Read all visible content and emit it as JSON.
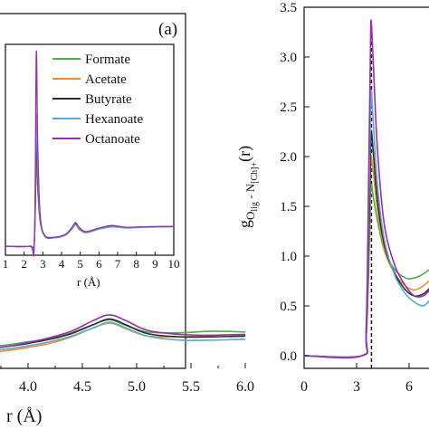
{
  "colors": {
    "Formate": "#4cae4c",
    "Acetate": "#f08c2a",
    "Butyrate": "#2a2a2a",
    "Hexanoate": "#56a9d8",
    "Octanoate": "#9b2db0"
  },
  "chart_data": [
    {
      "type": "line",
      "panel": "left-main",
      "panel_label": "(a)",
      "xlabel": "r (Å)",
      "xlim": [
        3.5,
        6.0
      ],
      "xticks": [
        "4.0",
        "4.5",
        "5.0",
        "5.5",
        "6.0"
      ],
      "series": [
        {
          "name": "Formate",
          "x": [
            3.5,
            3.8,
            4.0,
            4.2,
            4.4,
            4.6,
            4.75,
            4.9,
            5.1,
            5.4,
            5.7,
            6.0
          ],
          "y": [
            0.78,
            0.82,
            0.86,
            0.9,
            0.97,
            1.07,
            1.13,
            1.06,
            0.98,
            0.97,
            0.99,
            0.98
          ]
        },
        {
          "name": "Acetate",
          "x": [
            3.5,
            3.8,
            4.0,
            4.2,
            4.4,
            4.6,
            4.75,
            4.9,
            5.1,
            5.4,
            5.7,
            6.0
          ],
          "y": [
            0.7,
            0.75,
            0.79,
            0.84,
            0.92,
            1.03,
            1.09,
            1.02,
            0.93,
            0.92,
            0.94,
            0.95
          ]
        },
        {
          "name": "Butyrate",
          "x": [
            3.5,
            3.8,
            4.0,
            4.2,
            4.4,
            4.6,
            4.75,
            4.9,
            5.1,
            5.4,
            5.7,
            6.0
          ],
          "y": [
            0.76,
            0.8,
            0.84,
            0.89,
            0.96,
            1.07,
            1.14,
            1.07,
            0.96,
            0.92,
            0.92,
            0.93
          ]
        },
        {
          "name": "Hexanoate",
          "x": [
            3.5,
            3.8,
            4.0,
            4.2,
            4.4,
            4.6,
            4.75,
            4.9,
            5.1,
            5.4,
            5.7,
            6.0
          ],
          "y": [
            0.73,
            0.77,
            0.81,
            0.86,
            0.93,
            1.03,
            1.1,
            1.03,
            0.93,
            0.88,
            0.88,
            0.89
          ]
        },
        {
          "name": "Octanoate",
          "x": [
            3.5,
            3.8,
            4.0,
            4.2,
            4.4,
            4.6,
            4.75,
            4.9,
            5.1,
            5.4,
            5.7,
            6.0
          ],
          "y": [
            0.75,
            0.8,
            0.85,
            0.91,
            0.99,
            1.12,
            1.19,
            1.12,
            1.0,
            0.95,
            0.94,
            0.95
          ]
        }
      ]
    },
    {
      "type": "line",
      "panel": "left-inset",
      "xlabel": "r (Å)",
      "xlim": [
        1,
        10
      ],
      "xticks": [
        "1",
        "2",
        "3",
        "4",
        "5",
        "6",
        "7",
        "8",
        "9",
        "10"
      ],
      "legend": "top-right",
      "series": [
        {
          "name": "Formate",
          "x": [
            1,
            2.3,
            2.55,
            2.65,
            2.72,
            2.85,
            3.1,
            3.6,
            4.2,
            4.55,
            4.75,
            4.95,
            5.3,
            6.0,
            6.7,
            7.5,
            8.5,
            10
          ],
          "y": [
            0,
            0,
            0.3,
            4.35,
            3.0,
            1.3,
            0.55,
            0.45,
            0.58,
            0.9,
            1.12,
            0.88,
            0.7,
            0.88,
            1.03,
            0.95,
            0.98,
            1.0
          ]
        },
        {
          "name": "Acetate",
          "x": [
            1,
            2.3,
            2.55,
            2.65,
            2.72,
            2.85,
            3.1,
            3.6,
            4.2,
            4.55,
            4.75,
            4.95,
            5.3,
            6.0,
            6.7,
            7.5,
            8.5,
            10
          ],
          "y": [
            0,
            0,
            0.3,
            4.7,
            3.1,
            1.3,
            0.5,
            0.42,
            0.55,
            0.86,
            1.08,
            0.85,
            0.68,
            0.86,
            1.0,
            0.93,
            0.97,
            1.0
          ]
        },
        {
          "name": "Butyrate",
          "x": [
            1,
            2.3,
            2.55,
            2.65,
            2.72,
            2.85,
            3.1,
            3.6,
            4.2,
            4.55,
            4.75,
            4.95,
            5.3,
            6.0,
            6.7,
            7.5,
            8.5,
            10
          ],
          "y": [
            0,
            0,
            0.3,
            5.4,
            3.5,
            1.4,
            0.52,
            0.44,
            0.57,
            0.9,
            1.15,
            0.9,
            0.72,
            0.9,
            1.02,
            0.95,
            0.98,
            1.0
          ]
        },
        {
          "name": "Hexanoate",
          "x": [
            1,
            2.3,
            2.55,
            2.65,
            2.72,
            2.85,
            3.1,
            3.6,
            4.2,
            4.55,
            4.75,
            4.95,
            5.3,
            6.0,
            6.7,
            7.5,
            8.5,
            10
          ],
          "y": [
            0,
            0,
            0.3,
            6.6,
            4.1,
            1.5,
            0.5,
            0.42,
            0.55,
            0.86,
            1.1,
            0.86,
            0.68,
            0.86,
            0.98,
            0.92,
            0.96,
            0.99
          ]
        },
        {
          "name": "Octanoate",
          "x": [
            1,
            2.3,
            2.55,
            2.65,
            2.72,
            2.85,
            3.1,
            3.6,
            4.2,
            4.55,
            4.75,
            4.95,
            5.3,
            6.0,
            6.7,
            7.5,
            8.5,
            10
          ],
          "y": [
            0,
            0,
            0.3,
            9.8,
            5.6,
            1.7,
            0.55,
            0.45,
            0.6,
            0.95,
            1.2,
            0.95,
            0.74,
            0.92,
            1.05,
            0.96,
            0.99,
            1.0
          ]
        }
      ]
    },
    {
      "type": "line",
      "panel": "right",
      "xlabel": "",
      "ylabel_main": "g",
      "ylabel_sub": "O",
      "ylabel_subsub": "lig",
      "ylabel_mid": " - N",
      "ylabel_mid_sub": "[Ch]+",
      "ylabel_tail": "(r)",
      "ylim": [
        -0.1,
        3.5
      ],
      "xlim": [
        0,
        7.5
      ],
      "xticks": [
        "0",
        "3",
        "6"
      ],
      "yticks": [
        "0.0",
        "0.5",
        "1.0",
        "1.5",
        "2.0",
        "2.5",
        "3.0",
        "3.5"
      ],
      "vline_x": 3.85,
      "series": [
        {
          "name": "Formate",
          "x": [
            0,
            3.3,
            3.55,
            3.7,
            3.8,
            3.85,
            3.95,
            4.2,
            4.6,
            5.2,
            5.8,
            6.3,
            6.8,
            7.2,
            7.5
          ],
          "y": [
            0,
            0,
            0.2,
            0.9,
            1.6,
            1.72,
            1.6,
            1.35,
            1.05,
            0.86,
            0.78,
            0.78,
            0.82,
            0.87,
            0.9
          ]
        },
        {
          "name": "Acetate",
          "x": [
            0,
            3.3,
            3.55,
            3.7,
            3.8,
            3.85,
            3.95,
            4.2,
            4.6,
            5.2,
            5.8,
            6.3,
            6.8,
            7.2,
            7.5
          ],
          "y": [
            0,
            0,
            0.2,
            1.1,
            1.9,
            2.0,
            1.85,
            1.45,
            1.05,
            0.82,
            0.7,
            0.66,
            0.7,
            0.76,
            0.8
          ]
        },
        {
          "name": "Butyrate",
          "x": [
            0,
            3.3,
            3.55,
            3.7,
            3.8,
            3.85,
            3.95,
            4.2,
            4.6,
            5.2,
            5.8,
            6.3,
            6.8,
            7.2,
            7.5
          ],
          "y": [
            0,
            0,
            0.2,
            1.2,
            2.1,
            2.25,
            2.05,
            1.55,
            1.1,
            0.82,
            0.66,
            0.6,
            0.62,
            0.68,
            0.72
          ]
        },
        {
          "name": "Hexanoate",
          "x": [
            0,
            3.3,
            3.55,
            3.7,
            3.8,
            3.85,
            3.95,
            4.2,
            4.6,
            5.2,
            5.8,
            6.3,
            6.8,
            7.2,
            7.5
          ],
          "y": [
            0,
            0,
            0.25,
            1.5,
            2.5,
            2.65,
            2.35,
            1.7,
            1.15,
            0.8,
            0.62,
            0.54,
            0.5,
            0.56,
            0.6
          ]
        },
        {
          "name": "Octanoate",
          "x": [
            0,
            3.3,
            3.55,
            3.7,
            3.8,
            3.85,
            3.95,
            4.2,
            4.6,
            5.2,
            5.8,
            6.3,
            6.8,
            7.2,
            7.5
          ],
          "y": [
            0,
            0,
            0.3,
            1.9,
            3.2,
            3.33,
            2.95,
            2.05,
            1.3,
            0.9,
            0.7,
            0.6,
            0.6,
            0.66,
            0.7
          ]
        }
      ]
    }
  ]
}
